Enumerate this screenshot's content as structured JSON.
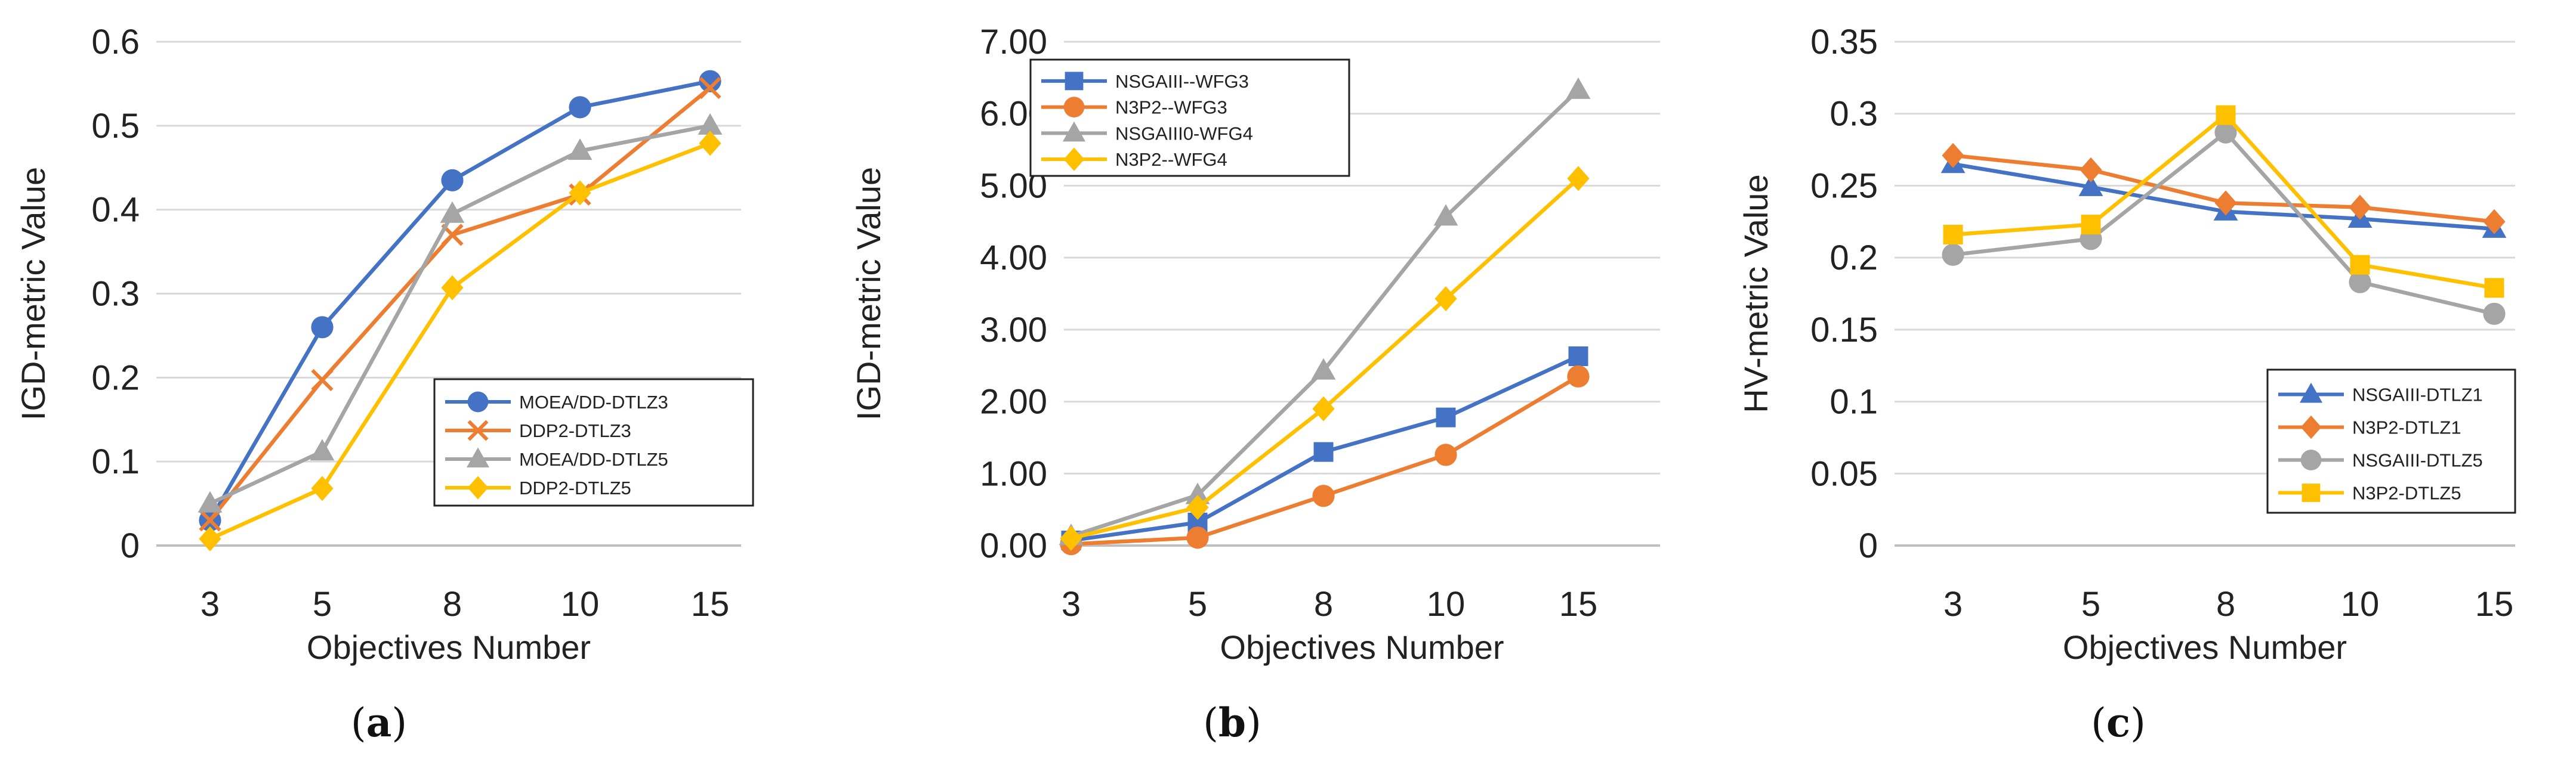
{
  "colors": {
    "blue": "#4472C4",
    "orange": "#ED7D31",
    "gray": "#A5A5A5",
    "yellow": "#FFC000",
    "grid": "#D9D9D9",
    "frame": "#BFBFBF"
  },
  "chart_data": [
    {
      "panel_label": "a",
      "type": "line",
      "categories": [
        "3",
        "5",
        "8",
        "10",
        "15"
      ],
      "xlabel": "Objectives Number",
      "ylabel": "IGD-metric Value",
      "ylim": [
        0,
        0.6
      ],
      "yticks": [
        "0",
        "0.1",
        "0.2",
        "0.3",
        "0.4",
        "0.5",
        "0.6"
      ],
      "legend_position": "bottom-right",
      "grid": true,
      "series": [
        {
          "name": "MOEA/DD-DTLZ3",
          "color": "blue",
          "marker": "circle",
          "values": [
            0.03,
            0.26,
            0.435,
            0.522,
            0.553
          ]
        },
        {
          "name": "DDP2-DTLZ3",
          "color": "orange",
          "marker": "x",
          "values": [
            0.03,
            0.197,
            0.37,
            0.418,
            0.545
          ]
        },
        {
          "name": "MOEA/DD-DTLZ5",
          "color": "gray",
          "marker": "triangle",
          "values": [
            0.05,
            0.112,
            0.395,
            0.47,
            0.5
          ]
        },
        {
          "name": "DDP2-DTLZ5",
          "color": "yellow",
          "marker": "diamond",
          "values": [
            0.008,
            0.068,
            0.307,
            0.42,
            0.479
          ]
        }
      ]
    },
    {
      "panel_label": "b",
      "type": "line",
      "categories": [
        "3",
        "5",
        "8",
        "10",
        "15"
      ],
      "xlabel": "Objectives Number",
      "ylabel": "IGD-metric Value",
      "ylim": [
        0,
        7
      ],
      "yticks": [
        "0.00",
        "1.00",
        "2.00",
        "3.00",
        "4.00",
        "5.00",
        "6.00",
        "7.00"
      ],
      "legend_position": "top-left",
      "grid": true,
      "series": [
        {
          "name": "NSGAIII--WFG3",
          "color": "blue",
          "marker": "square",
          "values": [
            0.07,
            0.32,
            1.3,
            1.78,
            2.63
          ]
        },
        {
          "name": "N3P2--WFG3",
          "color": "orange",
          "marker": "circle",
          "values": [
            0.02,
            0.11,
            0.69,
            1.26,
            2.35
          ]
        },
        {
          "name": "NSGAIII0-WFG4",
          "color": "gray",
          "marker": "triangle",
          "values": [
            0.13,
            0.7,
            2.43,
            4.57,
            6.33
          ]
        },
        {
          "name": "N3P2--WFG4",
          "color": "yellow",
          "marker": "diamond",
          "values": [
            0.1,
            0.53,
            1.9,
            3.43,
            5.1
          ]
        }
      ]
    },
    {
      "panel_label": "c",
      "type": "line",
      "categories": [
        "3",
        "5",
        "8",
        "10",
        "15"
      ],
      "xlabel": "Objectives Number",
      "ylabel": "HV-metric Value",
      "ylim": [
        0,
        0.35
      ],
      "yticks": [
        "0",
        "0.05",
        "0.1",
        "0.15",
        "0.2",
        "0.25",
        "0.3",
        "0.35"
      ],
      "legend_position": "bottom-right",
      "grid": true,
      "series": [
        {
          "name": "NSGAIII-DTLZ1",
          "color": "blue",
          "marker": "triangle",
          "values": [
            0.265,
            0.249,
            0.232,
            0.227,
            0.22
          ]
        },
        {
          "name": "N3P2-DTLZ1",
          "color": "orange",
          "marker": "diamond",
          "values": [
            0.271,
            0.261,
            0.238,
            0.235,
            0.225
          ]
        },
        {
          "name": "NSGAIII-DTLZ5",
          "color": "gray",
          "marker": "circle",
          "values": [
            0.202,
            0.213,
            0.287,
            0.183,
            0.161
          ]
        },
        {
          "name": "N3P2-DTLZ5",
          "color": "yellow",
          "marker": "square",
          "values": [
            0.216,
            0.223,
            0.299,
            0.195,
            0.179
          ]
        }
      ]
    }
  ]
}
